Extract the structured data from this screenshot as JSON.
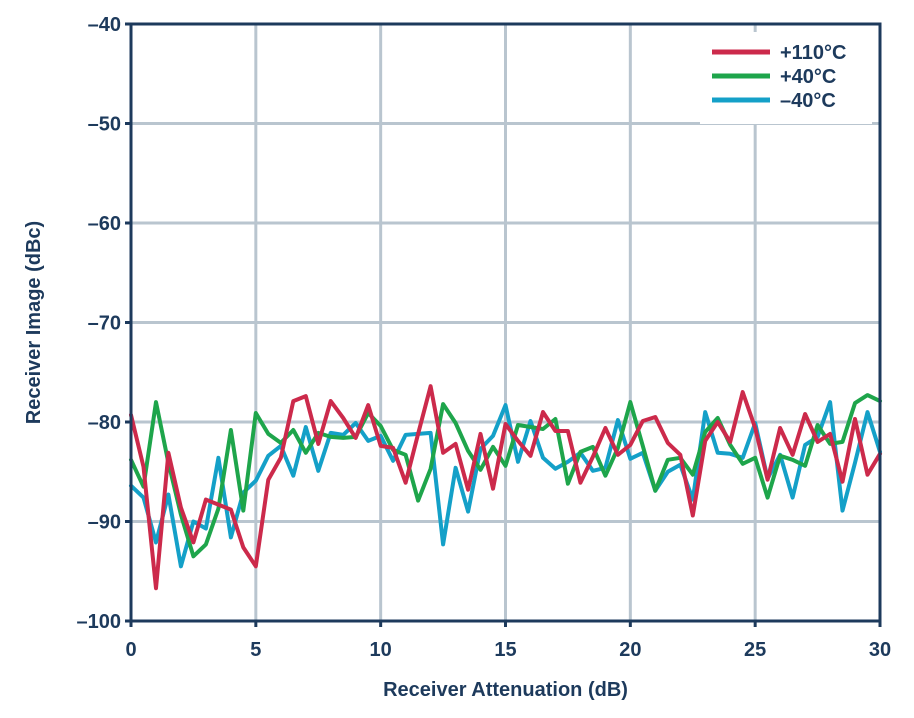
{
  "chart_data": {
    "type": "line",
    "xlabel": "Receiver Attenuation (dB)",
    "ylabel": "Receiver Image (dBc)",
    "xlim": [
      0,
      30
    ],
    "ylim": [
      -100,
      -40
    ],
    "xticks": [
      0,
      5,
      10,
      15,
      20,
      25,
      30
    ],
    "xtick_labels": [
      "0",
      "5",
      "10",
      "15",
      "20",
      "25",
      "30"
    ],
    "yticks": [
      -40,
      -50,
      -60,
      -70,
      -80,
      -90,
      -100
    ],
    "ytick_labels": [
      "–40",
      "–50",
      "–60",
      "–70",
      "–80",
      "–90",
      "–100"
    ],
    "grid": true,
    "legend_position": "top-right",
    "x": [
      0,
      0.5,
      1,
      1.5,
      2,
      2.5,
      3,
      3.5,
      4,
      4.5,
      5,
      5.5,
      6,
      6.5,
      7,
      7.5,
      8,
      8.5,
      9,
      9.5,
      10,
      10.5,
      11,
      11.5,
      12,
      12.5,
      13,
      13.5,
      14,
      14.5,
      15,
      15.5,
      16,
      16.5,
      17,
      17.5,
      18,
      18.5,
      19,
      19.5,
      20,
      20.5,
      21,
      21.5,
      22,
      22.5,
      23,
      23.5,
      24,
      24.5,
      25,
      25.5,
      26,
      26.5,
      27,
      27.5,
      28,
      28.5,
      29,
      29.5,
      30
    ],
    "series": [
      {
        "name": "+110°C",
        "color": "#cc2a4b",
        "values": [
          -79.3,
          -84.5,
          -96.7,
          -83.1,
          -88.6,
          -92.1,
          -87.8,
          -88.3,
          -88.8,
          -92.6,
          -94.5,
          -85.8,
          -83.6,
          -77.9,
          -77.4,
          -82.2,
          -77.9,
          -79.6,
          -81.6,
          -78.3,
          -82.4,
          -82.6,
          -86.1,
          -81.2,
          -76.4,
          -83.1,
          -82.2,
          -86.8,
          -81.2,
          -86.7,
          -80.2,
          -81.9,
          -83.4,
          -79.0,
          -80.9,
          -80.9,
          -86.1,
          -83.5,
          -80.6,
          -83.3,
          -82.3,
          -79.9,
          -79.5,
          -82.1,
          -83.3,
          -89.4,
          -81.9,
          -80.0,
          -82.0,
          -77.0,
          -80.6,
          -85.8,
          -80.6,
          -83.3,
          -79.2,
          -82.0,
          -81.2,
          -86.0,
          -79.7,
          -85.3,
          -83.2
        ]
      },
      {
        "name": "+40°C",
        "color": "#1ea54b",
        "values": [
          -83.8,
          -86.5,
          -78.0,
          -84.1,
          -89.3,
          -93.5,
          -92.3,
          -88.7,
          -80.8,
          -88.9,
          -79.1,
          -81.2,
          -82.1,
          -80.8,
          -83.1,
          -81.1,
          -81.5,
          -81.6,
          -81.5,
          -79.1,
          -80.4,
          -82.8,
          -83.3,
          -87.9,
          -84.7,
          -78.2,
          -80.1,
          -82.9,
          -84.8,
          -82.5,
          -84.4,
          -80.3,
          -80.5,
          -80.7,
          -79.7,
          -86.2,
          -83.0,
          -82.5,
          -85.4,
          -82.6,
          -78.0,
          -82.4,
          -86.9,
          -83.8,
          -83.6,
          -85.3,
          -81.0,
          -79.6,
          -82.3,
          -84.2,
          -83.6,
          -87.6,
          -83.4,
          -83.8,
          -84.4,
          -80.3,
          -82.2,
          -82.0,
          -78.1,
          -77.3,
          -77.9
        ]
      },
      {
        "name": "–40°C",
        "color": "#14a0c8",
        "values": [
          -86.4,
          -87.6,
          -92.1,
          -87.3,
          -94.5,
          -90.0,
          -90.7,
          -83.6,
          -91.6,
          -87.1,
          -85.9,
          -83.4,
          -82.4,
          -85.4,
          -80.5,
          -84.9,
          -81.1,
          -81.3,
          -80.1,
          -81.9,
          -81.4,
          -83.9,
          -81.3,
          -81.2,
          -81.1,
          -92.3,
          -84.6,
          -89.0,
          -82.7,
          -81.4,
          -78.3,
          -84.0,
          -79.9,
          -83.6,
          -84.7,
          -84.0,
          -83.1,
          -84.9,
          -84.6,
          -79.8,
          -83.7,
          -83.1,
          -86.9,
          -85.0,
          -84.3,
          -87.8,
          -79.0,
          -83.1,
          -83.2,
          -83.6,
          -80.1,
          -85.7,
          -83.3,
          -87.6,
          -82.3,
          -81.5,
          -78.0,
          -88.9,
          -84.1,
          -79.0,
          -83.0
        ]
      }
    ]
  }
}
